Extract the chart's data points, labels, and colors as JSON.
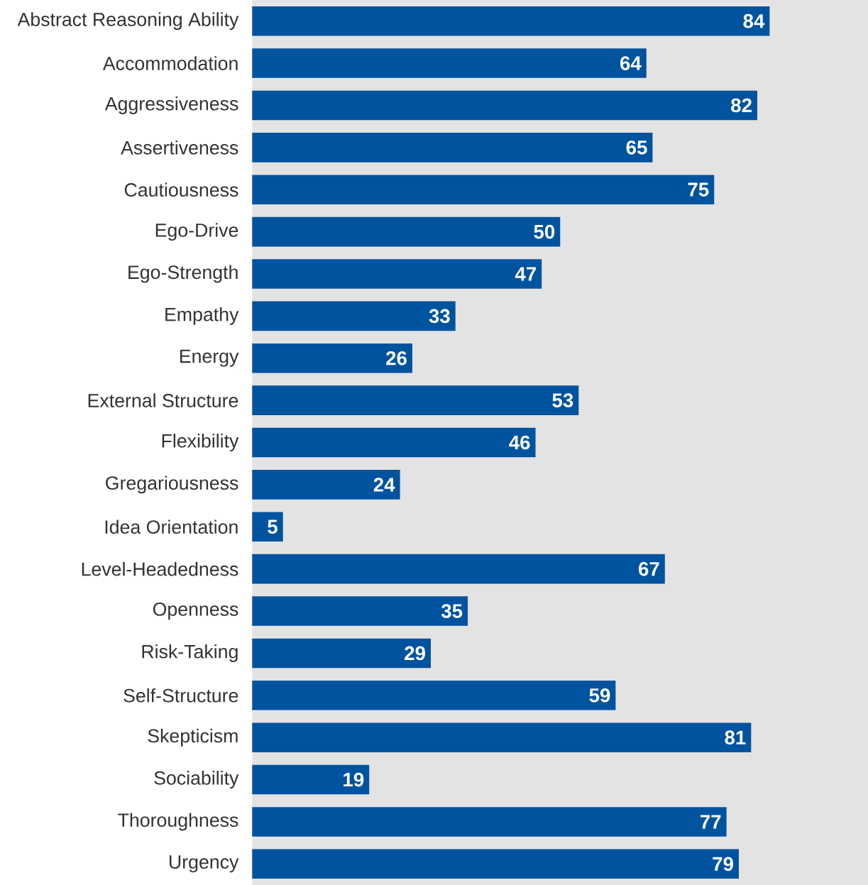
{
  "chart_data": {
    "type": "bar",
    "orientation": "horizontal",
    "categories": [
      "Abstract Reasoning Ability",
      "Accommodation",
      "Aggressiveness",
      "Assertiveness",
      "Cautiousness",
      "Ego-Drive",
      "Ego-Strength",
      "Empathy",
      "Energy",
      "External Structure",
      "Flexibility",
      "Gregariousness",
      "Idea Orientation",
      "Level-Headedness",
      "Openness",
      "Risk-Taking",
      "Self-Structure",
      "Skepticism",
      "Sociability",
      "Thoroughness",
      "Urgency"
    ],
    "values": [
      84,
      64,
      82,
      65,
      75,
      50,
      47,
      33,
      26,
      53,
      46,
      24,
      5,
      67,
      35,
      29,
      59,
      81,
      19,
      77,
      79
    ],
    "color": "#00539f",
    "data_labels": true,
    "xlim": [
      0,
      100
    ],
    "tick_labels": "y",
    "bands": [
      {
        "axis": "x",
        "from": 0,
        "to": 100,
        "color": "#e3e3e3"
      }
    ]
  }
}
